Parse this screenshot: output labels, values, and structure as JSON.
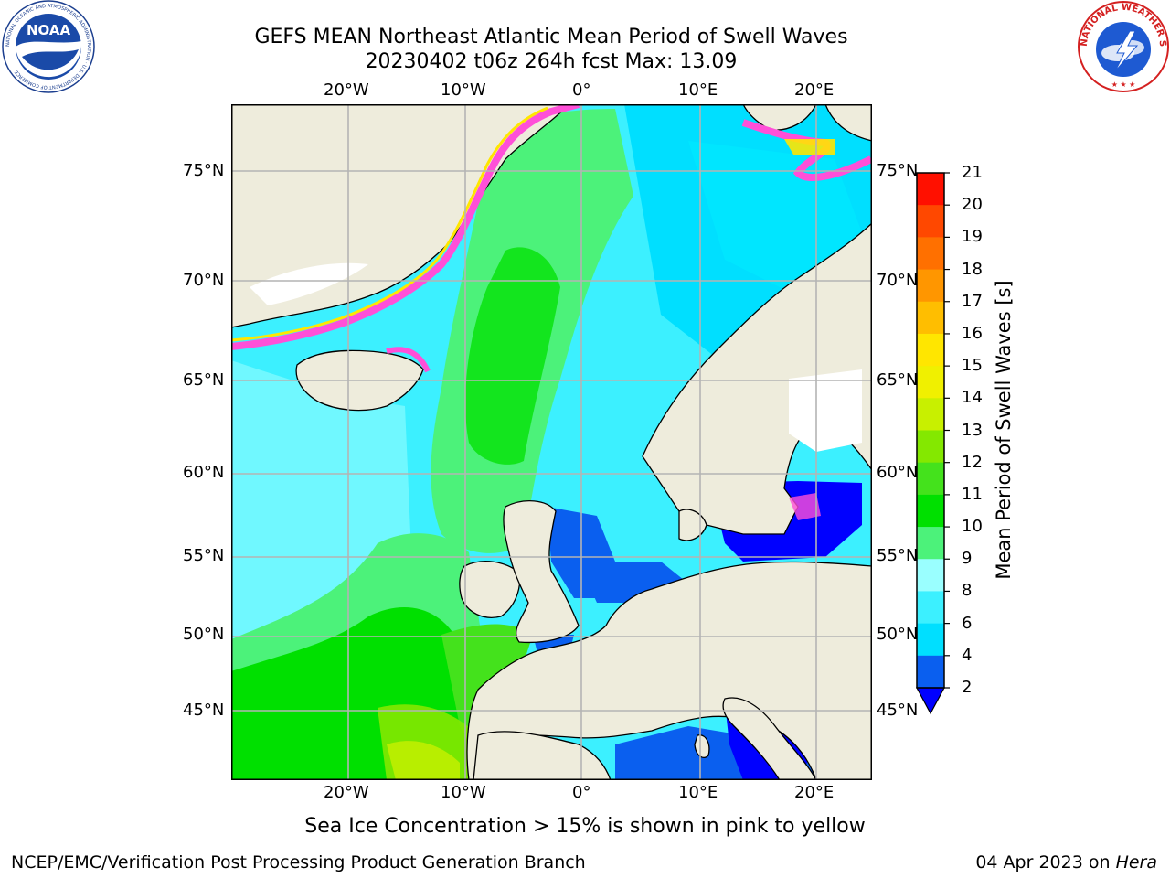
{
  "title_line1": "GEFS MEAN Northeast Atlantic Mean Period of Swell Waves",
  "title_line2": "20230402 t06z 264h fcst   Max: 13.09",
  "lon_labels": [
    "20°W",
    "10°W",
    "0°",
    "10°E",
    "20°E"
  ],
  "lat_labels": [
    "75°N",
    "70°N",
    "65°N",
    "60°N",
    "55°N",
    "50°N",
    "45°N"
  ],
  "colorbar": {
    "label": "Mean Period of Swell Waves [s]",
    "ticks": [
      "2",
      "4",
      "6",
      "8",
      "9",
      "10",
      "11",
      "12",
      "13",
      "14",
      "15",
      "16",
      "17",
      "18",
      "19",
      "20",
      "21"
    ],
    "colors": [
      "#0a5fef",
      "#00dfff",
      "#3cf0ff",
      "#9affff",
      "#4cf27a",
      "#00e000",
      "#44e21c",
      "#84e800",
      "#c8f000",
      "#f0f000",
      "#ffe600",
      "#ffbe00",
      "#ff9600",
      "#ff7000",
      "#ff4800",
      "#ff1000"
    ],
    "extend_low_color": "#0000ff"
  },
  "sea_ice_note": "Sea Ice Concentration > 15% is shown in pink to yellow",
  "footer_left": "NCEP/EMC/Verification Post Processing Product Generation Branch",
  "footer_right_date": "04 Apr 2023 on ",
  "footer_right_machine": "Hera",
  "logos": {
    "noaa_text": "NOAA",
    "noaa_ring_text": "NATIONAL OCEANIC AND ATMOSPHERIC ADMINISTRATION · U.S. DEPARTMENT OF COMMERCE",
    "nws_ring_text": "NATIONAL WEATHER SERVICE"
  },
  "palette": {
    "land": "#eeecdc",
    "coast": "#000000",
    "grid": "#b4b4b4"
  },
  "icons": [
    "noaa-logo-icon",
    "nws-logo-icon"
  ]
}
